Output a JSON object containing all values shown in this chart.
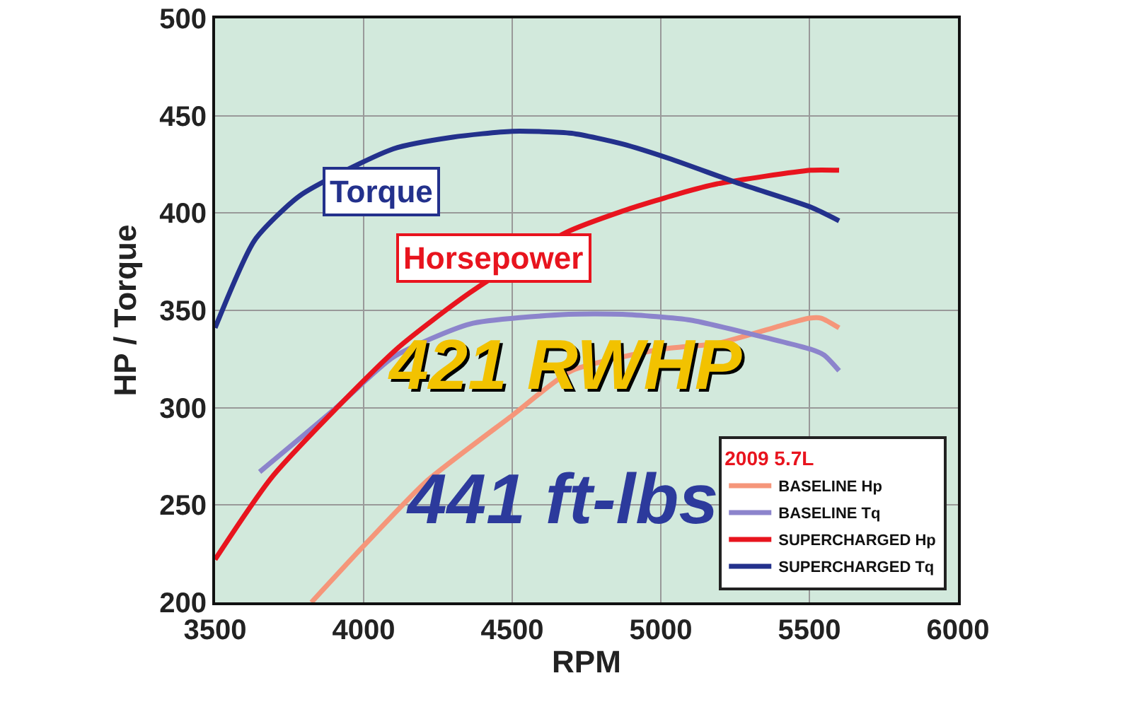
{
  "chart_data": {
    "type": "line",
    "xlabel": "RPM",
    "ylabel": "HP / Torque",
    "legend_title": "2009 5.7L",
    "xlim": [
      3500,
      6000
    ],
    "xticks": [
      3500,
      4000,
      4500,
      5000,
      5500,
      6000
    ],
    "ylim": [
      200,
      500
    ],
    "yticks": [
      200,
      250,
      300,
      350,
      400,
      450,
      500
    ],
    "grid": true,
    "legend": "bottom right",
    "line_style": "solid",
    "marker": "none",
    "series": [
      {
        "name": "BASELINE Hp",
        "color": "#f5967a",
        "x": [
          3824,
          4000,
          4210,
          4500,
          4700,
          5000,
          5190,
          5400,
          5500,
          5540,
          5600
        ],
        "values": [
          200,
          229,
          262,
          296,
          319,
          330,
          333,
          342,
          346,
          346,
          341
        ]
      },
      {
        "name": "BASELINE Tq",
        "color": "#8c84cc",
        "x": [
          3650,
          3900,
          4100,
          4357,
          4690,
          4871,
          5100,
          5300,
          5505,
          5550,
          5600
        ],
        "values": [
          267,
          299,
          326,
          343,
          348,
          348,
          345,
          338,
          330,
          327,
          319
        ]
      },
      {
        "name": "SUPERCHARGED Hp",
        "color": "#e8141e",
        "x": [
          3500,
          3695,
          4110,
          4357,
          4681,
          4871,
          5062,
          5190,
          5505,
          5600
        ],
        "values": [
          222,
          265,
          330,
          359,
          390,
          401,
          410,
          415,
          422,
          422
        ]
      },
      {
        "name": "SUPERCHARGED Tq",
        "color": "#23318c",
        "x": [
          3500,
          3633,
          3786,
          4100,
          4300,
          4500,
          4700,
          4871,
          5029,
          5267,
          5505,
          5600
        ],
        "values": [
          341,
          386,
          409,
          433,
          439,
          442,
          441,
          435.5,
          428,
          415,
          403,
          396
        ]
      }
    ],
    "annotations": [
      "Torque",
      "Horsepower",
      "421 RWHP",
      "441 ft-lbs"
    ]
  }
}
